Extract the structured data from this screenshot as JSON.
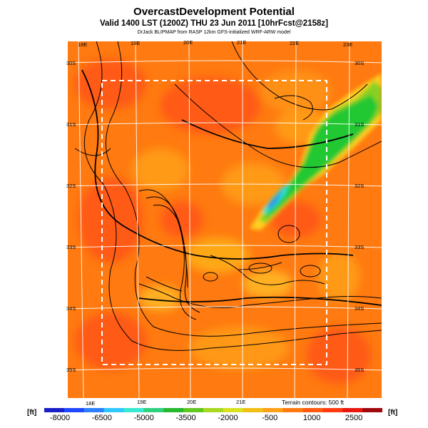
{
  "header": {
    "title": "OvercastDevelopment Potential",
    "subtitle": "Valid 1400 LST (1200Z) THU 23 Jun 2011 [10hrFcst@2158z]",
    "source": "DrJack BLIPMAP from RASP 12km GFS-initialized WRF-ARW model"
  },
  "map": {
    "lon_labels_top": [
      "18E",
      "19E",
      "20E",
      "21E",
      "22E",
      "23E"
    ],
    "lon_labels_bottom": [
      "18E",
      "19E",
      "20E",
      "21E"
    ],
    "lat_labels_left": [
      "30S",
      "31S",
      "32S",
      "33S",
      "34S",
      "35S"
    ],
    "lat_labels_right": [
      "30S",
      "31S",
      "32S",
      "33S",
      "34S",
      "35S"
    ],
    "terrain_note": "Terrain contours: 500 ft",
    "colors": {
      "background": "#ff7a10",
      "high": "#ff5a12",
      "moderate": "#ff9e18",
      "green": "#22c832",
      "cyan": "#2ed8c8",
      "blue": "#2878ff",
      "contour": "#000000",
      "grid": "#ffffff"
    }
  },
  "colorbar": {
    "unit_left": "[ft]",
    "unit_right": "[ft]",
    "ticks": [
      "-8000",
      "-6500",
      "-5000",
      "-3500",
      "-2000",
      "-500",
      "1000",
      "2500"
    ],
    "colors": [
      "#1a20c8",
      "#2048ff",
      "#2a80ff",
      "#30c8ff",
      "#38e8d0",
      "#30d080",
      "#28b830",
      "#60c820",
      "#a8d820",
      "#d8e020",
      "#f0c018",
      "#ffa018",
      "#ff7a10",
      "#ff5a10",
      "#ff3a10",
      "#e81810",
      "#a00810"
    ]
  }
}
